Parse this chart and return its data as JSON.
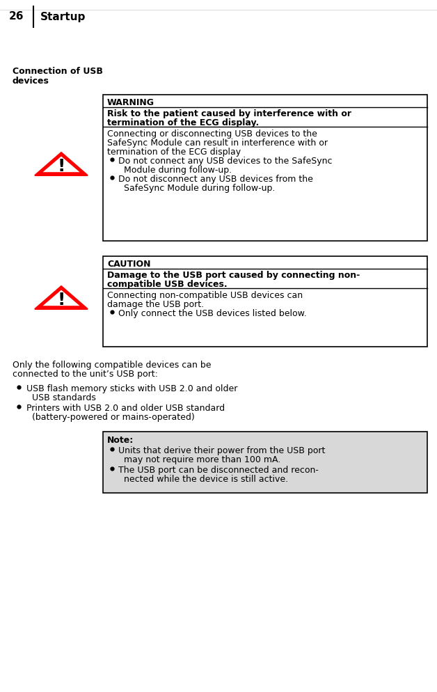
{
  "page_num": "26",
  "page_header": "Startup",
  "section_title_line1": "Connection of USB",
  "section_title_line2": "devices",
  "bg_color": "#ffffff",
  "warning_label": "WARNING",
  "warning_bold_lines": [
    "Risk to the patient caused by interference with or",
    "termination of the ECG display."
  ],
  "warning_body_lines": [
    "Connecting or disconnecting USB devices to the",
    "SafeSync Module can result in interference with or",
    "termination of the ECG display"
  ],
  "warning_bullet1_lines": [
    "Do not connect any USB devices to the SafeSync",
    "Module during follow-up."
  ],
  "warning_bullet2_lines": [
    "Do not disconnect any USB devices from the",
    "SafeSync Module during follow-up."
  ],
  "caution_label": "CAUTION",
  "caution_bold_lines": [
    "Damage to the USB port caused by connecting non-",
    "compatible USB devices."
  ],
  "caution_body_lines": [
    "Connecting non-compatible USB devices can",
    "damage the USB port."
  ],
  "caution_bullet1_lines": [
    "Only connect the USB devices listed below."
  ],
  "intro_lines": [
    "Only the following compatible devices can be",
    "connected to the unit’s USB port:"
  ],
  "main_bullet1_lines": [
    "USB flash memory sticks with USB 2.0 and older",
    "USB standards"
  ],
  "main_bullet2_lines": [
    "Printers with USB 2.0 and older USB standard",
    "(battery-powered or mains-operated)"
  ],
  "note_bold": "Note:",
  "note_bullet1_lines": [
    "Units that derive their power from the USB port",
    "may not require more than 100 mA."
  ],
  "note_bullet2_lines": [
    "The USB port can be disconnected and recon-",
    "nected while the device is still active."
  ],
  "triangle_fill": "#ff0000",
  "note_bg": "#d8d8d8",
  "font_size": 9.0,
  "font_size_header": 9.5,
  "font_size_page": 11.0
}
